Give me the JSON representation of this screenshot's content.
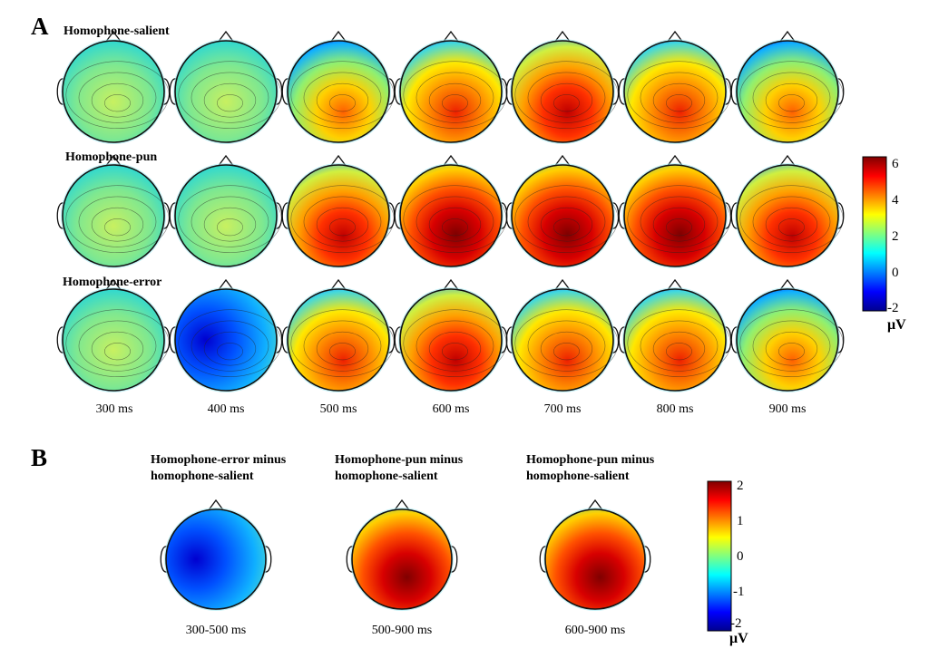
{
  "panel_a": {
    "letter": "A",
    "rows": [
      {
        "label": "Homophone-salient",
        "scalp": [
          "green-c",
          "green-c",
          "yellow-c",
          "orange-c",
          "red-c",
          "orange-c",
          "yellow-c"
        ]
      },
      {
        "label": "Homophone-pun",
        "scalp": [
          "green-c",
          "green-c",
          "red-c",
          "darkred-c",
          "darkred-c",
          "darkred-c",
          "red-c"
        ]
      },
      {
        "label": "Homophone-error",
        "scalp": [
          "green-c",
          "blue-c",
          "orange-c",
          "red-c",
          "orange-c",
          "orange-c",
          "yellow-c"
        ]
      }
    ],
    "times": [
      "300 ms",
      "400 ms",
      "500 ms",
      "600 ms",
      "700 ms",
      "800 ms",
      "900 ms"
    ],
    "colorbar": {
      "ticks": [
        "6",
        "4",
        "2",
        "0",
        "-2"
      ],
      "unit": "μV"
    }
  },
  "panel_b": {
    "letter": "B",
    "maps": [
      {
        "title_line1": "Homophone-error minus",
        "title_line2": "homophone-salient",
        "window": "300-500 ms",
        "scalp": "blue-c"
      },
      {
        "title_line1": "Homophone-pun minus",
        "title_line2": "homophone-salient",
        "window": "500-900 ms",
        "scalp": "darkred-c"
      },
      {
        "title_line1": "Homophone-pun minus",
        "title_line2": "homophone-salient",
        "window": "600-900 ms",
        "scalp": "darkred-c"
      }
    ],
    "colorbar": {
      "ticks": [
        "2",
        "1",
        "0",
        "-1",
        "-2"
      ],
      "unit": "μV"
    }
  },
  "colormap": [
    "#00008f",
    "#0000ff",
    "#0080ff",
    "#00ffff",
    "#80ff80",
    "#ffff00",
    "#ff8000",
    "#ff0000",
    "#800000"
  ]
}
